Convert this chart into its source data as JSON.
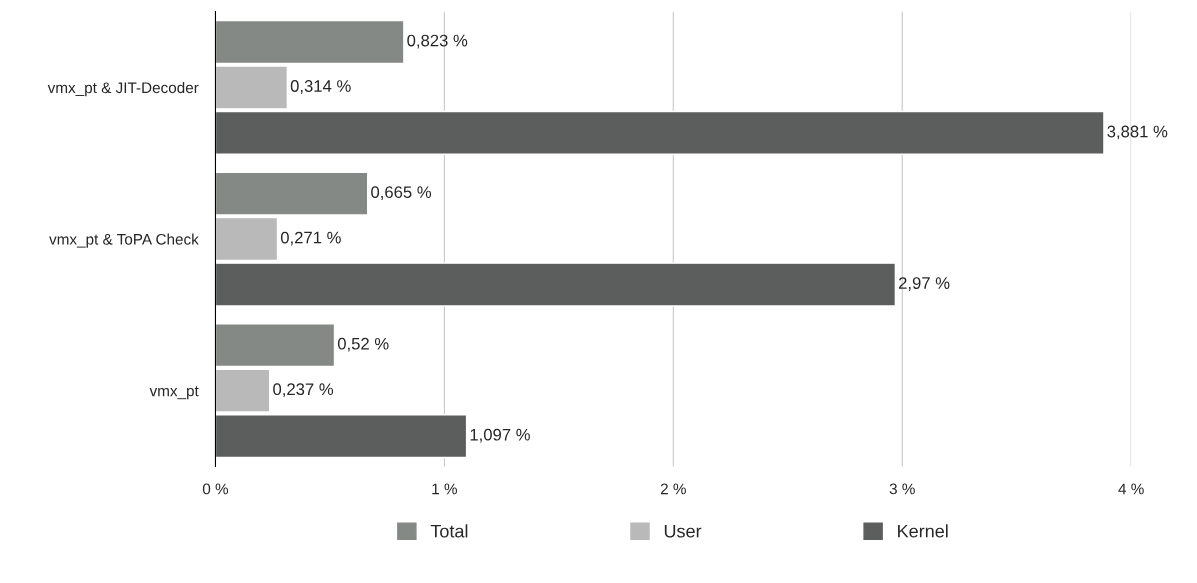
{
  "chart_data": {
    "type": "bar",
    "orientation": "horizontal",
    "categories": [
      "vmx_pt & JIT-Decoder",
      "vmx_pt & ToPA Check",
      "vmx_pt"
    ],
    "series": [
      {
        "name": "Total",
        "color": "#858985",
        "values": [
          0.823,
          0.665,
          0.52
        ],
        "value_labels": [
          "0,823 %",
          "0,665 %",
          "0,52 %"
        ]
      },
      {
        "name": "User",
        "color": "#b9b9b9",
        "values": [
          0.314,
          0.271,
          0.237
        ],
        "value_labels": [
          "0,314 %",
          "0,271 %",
          "0,237 %"
        ]
      },
      {
        "name": "Kernel",
        "color": "#5b5e5c",
        "values": [
          3.881,
          2.97,
          1.097
        ],
        "value_labels": [
          "3,881 %",
          "2,97 %",
          "1,097 %"
        ]
      }
    ],
    "xlim": [
      0,
      4
    ],
    "xticks": [
      {
        "value": 0,
        "label": "0 %"
      },
      {
        "value": 1,
        "label": "1 %"
      },
      {
        "value": 2,
        "label": "2 %"
      },
      {
        "value": 3,
        "label": "3 %"
      },
      {
        "value": 4,
        "label": "4 %"
      }
    ],
    "grid": "x",
    "legend": "bottom"
  }
}
